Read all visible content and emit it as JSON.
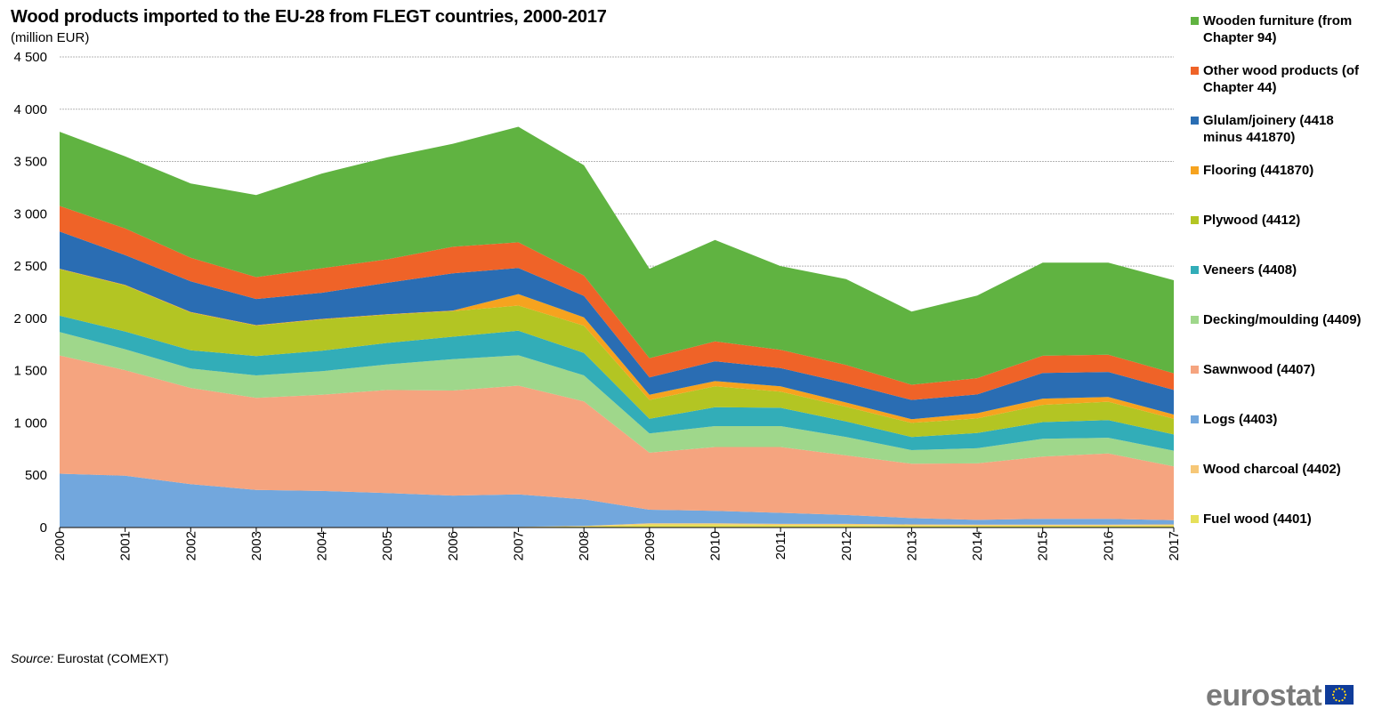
{
  "title": "Wood products imported to the EU-28 from FLEGT countries, 2000-2017",
  "subtitle": "(million EUR)",
  "source_label": "Source:",
  "source_text": " Eurostat (COMEXT)",
  "logo_text": "eurostat",
  "chart_data": {
    "type": "area",
    "stacked": true,
    "ylim": [
      0,
      4500
    ],
    "yticks": [
      0,
      500,
      1000,
      1500,
      2000,
      2500,
      3000,
      3500,
      4000,
      4500
    ],
    "ytick_labels": [
      "0",
      "500",
      "1 000",
      "1 500",
      "2 000",
      "2 500",
      "3 000",
      "3 500",
      "4 000",
      "4 500"
    ],
    "grid": true,
    "legend_position": "right",
    "x": [
      "2000",
      "2001",
      "2002",
      "2003",
      "2004",
      "2005",
      "2006",
      "2007",
      "2008",
      "2009",
      "2010",
      "2011",
      "2012",
      "2013",
      "2014",
      "2015",
      "2016",
      "2017"
    ],
    "series": [
      {
        "name": "Fuel wood (4401)",
        "color": "#e6e05a",
        "values": [
          3,
          3,
          3,
          3,
          3,
          3,
          3,
          5,
          10,
          30,
          30,
          25,
          25,
          20,
          18,
          18,
          18,
          20
        ]
      },
      {
        "name": "Wood charcoal (4402)",
        "color": "#f6c777",
        "values": [
          2,
          2,
          2,
          2,
          2,
          2,
          2,
          2,
          5,
          10,
          10,
          10,
          10,
          10,
          10,
          10,
          10,
          10
        ]
      },
      {
        "name": "Logs (4403)",
        "color": "#72a7dd",
        "values": [
          510,
          490,
          410,
          355,
          345,
          325,
          300,
          310,
          255,
          130,
          120,
          105,
          85,
          60,
          45,
          55,
          55,
          40
        ]
      },
      {
        "name": "Sawnwood (4407)",
        "color": "#f5a47f",
        "values": [
          1130,
          1010,
          920,
          880,
          920,
          985,
          1005,
          1040,
          935,
          545,
          610,
          630,
          570,
          520,
          540,
          595,
          625,
          515
        ]
      },
      {
        "name": "Decking/moulding (4409)",
        "color": "#9fd78b",
        "values": [
          225,
          200,
          185,
          215,
          225,
          245,
          300,
          290,
          250,
          185,
          200,
          200,
          175,
          130,
          145,
          170,
          150,
          150
        ]
      },
      {
        "name": "Veneers (4408)",
        "color": "#32adb8",
        "values": [
          155,
          170,
          175,
          185,
          195,
          205,
          215,
          235,
          215,
          140,
          180,
          175,
          150,
          125,
          145,
          160,
          170,
          155
        ]
      },
      {
        "name": "Plywood (4412)",
        "color": "#b3c523",
        "values": [
          445,
          440,
          360,
          290,
          300,
          270,
          245,
          240,
          260,
          180,
          200,
          155,
          140,
          135,
          140,
          165,
          175,
          150
        ]
      },
      {
        "name": "Flooring (441870)",
        "color": "#f6a31f",
        "values": [
          5,
          5,
          5,
          5,
          5,
          5,
          5,
          110,
          80,
          50,
          50,
          50,
          40,
          35,
          50,
          60,
          45,
          40
        ]
      },
      {
        "name": "Glulam/joinery (4418 minus 441870)",
        "color": "#2a6db3",
        "values": [
          355,
          285,
          295,
          250,
          250,
          300,
          355,
          250,
          205,
          165,
          190,
          175,
          185,
          185,
          180,
          245,
          240,
          235
        ]
      },
      {
        "name": "Other wood products (of Chapter 44)",
        "color": "#ef6328",
        "values": [
          245,
          255,
          225,
          210,
          235,
          225,
          255,
          245,
          195,
          185,
          190,
          175,
          175,
          145,
          155,
          165,
          165,
          160
        ]
      },
      {
        "name": "Wooden furniture (from Chapter 94)",
        "color": "#60b341",
        "values": [
          710,
          690,
          710,
          785,
          905,
          975,
          985,
          1105,
          1055,
          855,
          970,
          800,
          820,
          700,
          790,
          890,
          880,
          890
        ]
      }
    ]
  }
}
